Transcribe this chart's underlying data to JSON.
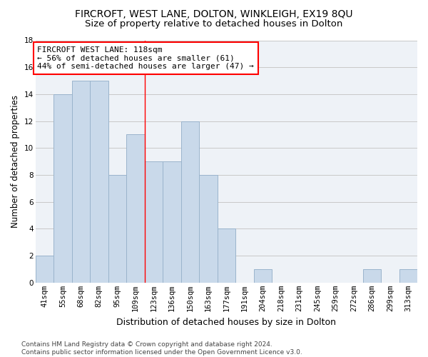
{
  "title1": "FIRCROFT, WEST LANE, DOLTON, WINKLEIGH, EX19 8QU",
  "title2": "Size of property relative to detached houses in Dolton",
  "xlabel": "Distribution of detached houses by size in Dolton",
  "ylabel": "Number of detached properties",
  "bar_labels": [
    "41sqm",
    "55sqm",
    "68sqm",
    "82sqm",
    "95sqm",
    "109sqm",
    "123sqm",
    "136sqm",
    "150sqm",
    "163sqm",
    "177sqm",
    "191sqm",
    "204sqm",
    "218sqm",
    "231sqm",
    "245sqm",
    "259sqm",
    "272sqm",
    "286sqm",
    "299sqm",
    "313sqm"
  ],
  "bar_values": [
    2,
    14,
    15,
    15,
    8,
    11,
    9,
    9,
    12,
    8,
    4,
    0,
    1,
    0,
    0,
    0,
    0,
    0,
    1,
    0,
    1
  ],
  "bar_color": "#c9d9ea",
  "bar_edgecolor": "#9ab4cc",
  "red_line_x": 5.5,
  "annotation_line1": "FIRCROFT WEST LANE: 118sqm",
  "annotation_line2": "← 56% of detached houses are smaller (61)",
  "annotation_line3": "44% of semi-detached houses are larger (47) →",
  "annotation_box_color": "white",
  "annotation_edge_color": "red",
  "ylim": [
    0,
    18
  ],
  "yticks": [
    0,
    2,
    4,
    6,
    8,
    10,
    12,
    14,
    16,
    18
  ],
  "background_color": "#eef2f7",
  "grid_color": "#c8c8c8",
  "footer": "Contains HM Land Registry data © Crown copyright and database right 2024.\nContains public sector information licensed under the Open Government Licence v3.0.",
  "title1_fontsize": 10,
  "title2_fontsize": 9.5,
  "xlabel_fontsize": 9,
  "ylabel_fontsize": 8.5,
  "tick_fontsize": 7.5,
  "annotation_fontsize": 8,
  "footer_fontsize": 6.5
}
